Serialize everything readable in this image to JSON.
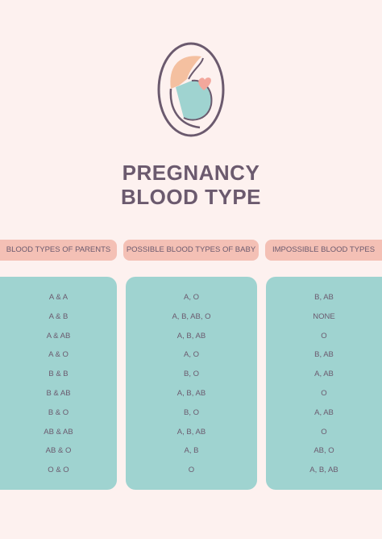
{
  "header": {
    "title": [
      "PREGNANCY",
      "BLOOD TYPE"
    ]
  },
  "table": {
    "columns": [
      "BLOOD TYPES OF PARENTS",
      "POSSIBLE BLOOD TYPES OF BABY",
      "IMPOSSIBLE BLOOD TYPES"
    ],
    "rows": [
      [
        "A & A",
        "A, O",
        "B, AB"
      ],
      [
        "A & B",
        "A, B, AB, O",
        "NONE"
      ],
      [
        "A & AB",
        "A, B, AB",
        "O"
      ],
      [
        "A & O",
        "A, O",
        "B, AB"
      ],
      [
        "B & B",
        "B, O",
        "A, AB"
      ],
      [
        "B & AB",
        "A, B, AB",
        "O"
      ],
      [
        "B & O",
        "B, O",
        "A, AB"
      ],
      [
        "AB & AB",
        "A, B, AB",
        "O"
      ],
      [
        "AB & O",
        "A, B",
        "AB, O"
      ],
      [
        "O & O",
        "O",
        "A, B, AB"
      ]
    ]
  }
}
